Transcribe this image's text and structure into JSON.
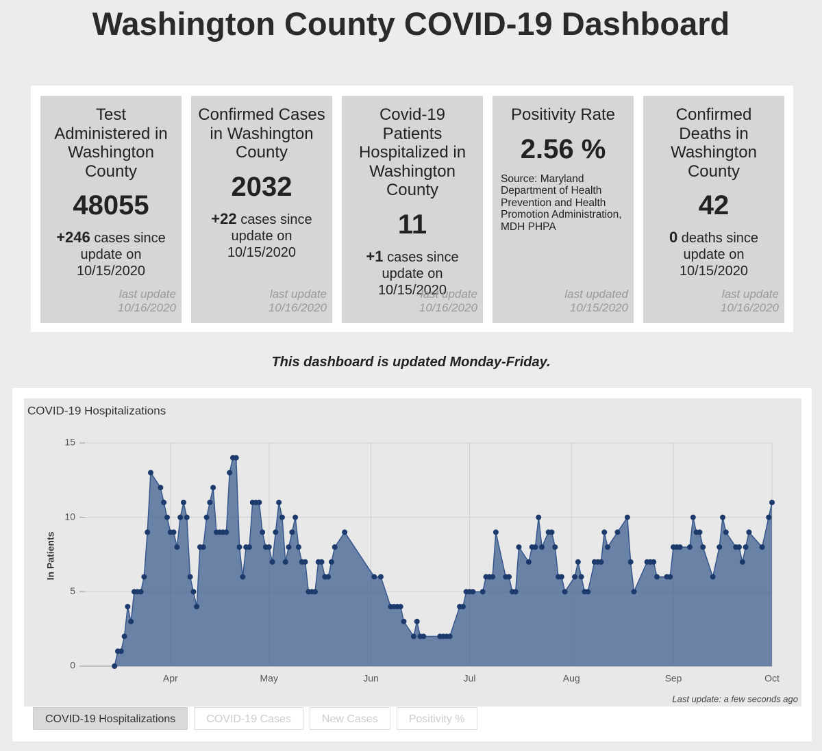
{
  "header": {
    "title": "Washington County COVID-19 Dashboard"
  },
  "cards": [
    {
      "title": "Test Administered in Washington County",
      "value": 48055,
      "change": "+246",
      "change_text": "cases since update on 10/15/2020",
      "footer": "last update 10/16/2020"
    },
    {
      "title": "Confirmed Cases in Washington County",
      "value": 2032,
      "change": "+22",
      "change_text": "cases since update on 10/15/2020",
      "footer": "last update 10/16/2020"
    },
    {
      "title": "Covid-19 Patients Hospitalized in Washington County",
      "value": 11,
      "change": "+1",
      "change_text": "cases since update on 10/15/2020",
      "footer": "last update 10/16/2020"
    },
    {
      "title": "Positivity Rate",
      "value": "2.56 %",
      "source": "Source: Maryland Department of Health Prevention and Health Promotion Administration, MDH PHPA",
      "footer": "last updated 10/15/2020"
    },
    {
      "title": "Confirmed Deaths in Washington County",
      "value": 42,
      "change": "0",
      "change_text": "deaths since update on 10/15/2020",
      "footer": "last update 10/16/2020"
    }
  ],
  "note": "This dashboard is updated Monday-Friday.",
  "chart_data": {
    "type": "area",
    "title": "COVID-19 Hospitalizations",
    "y_label": "In Patients",
    "color": "#36578c",
    "x": [
      0,
      1,
      2,
      3,
      4,
      5,
      6,
      7,
      8,
      9,
      10,
      11,
      14,
      15,
      16,
      17,
      18,
      19,
      20,
      21,
      22,
      23,
      24,
      25,
      26,
      27,
      28,
      29,
      30,
      31,
      32,
      33,
      34,
      35,
      36,
      37,
      38,
      39,
      40,
      41,
      42,
      43,
      44,
      45,
      46,
      47,
      48,
      49,
      50,
      51,
      52,
      53,
      54,
      55,
      56,
      57,
      58,
      59,
      60,
      61,
      62,
      63,
      64,
      65,
      66,
      67,
      70,
      79,
      81,
      84,
      85,
      86,
      87,
      88,
      91,
      92,
      93,
      94,
      99,
      100,
      101,
      102,
      105,
      106,
      107,
      108,
      109,
      112,
      113,
      114,
      115,
      116,
      119,
      120,
      121,
      122,
      123,
      126,
      127,
      128,
      129,
      130,
      132,
      133,
      134,
      135,
      136,
      137,
      140,
      141,
      142,
      143,
      144,
      146,
      147,
      148,
      149,
      150,
      153,
      156,
      157,
      158,
      162,
      163,
      164,
      165,
      168,
      169,
      170,
      171,
      172,
      175,
      176,
      177,
      178,
      179,
      182,
      184,
      185,
      186,
      189,
      190,
      191,
      192,
      193,
      197,
      199,
      200
    ],
    "series": [
      {
        "name": "COVID-19 Hospitalizations",
        "values": [
          0,
          1,
          1,
          2,
          4,
          3,
          5,
          5,
          5,
          6,
          9,
          13,
          12,
          11,
          10,
          9,
          9,
          8,
          10,
          11,
          10,
          6,
          5,
          4,
          8,
          8,
          10,
          11,
          12,
          9,
          9,
          9,
          9,
          13,
          14,
          14,
          8,
          6,
          8,
          8,
          11,
          11,
          11,
          9,
          8,
          8,
          7,
          9,
          11,
          10,
          7,
          8,
          9,
          10,
          8,
          7,
          7,
          5,
          5,
          5,
          7,
          7,
          6,
          6,
          7,
          8,
          9,
          6,
          6,
          4,
          4,
          4,
          4,
          3,
          2,
          3,
          2,
          2,
          2,
          2,
          2,
          2,
          4,
          4,
          5,
          5,
          5,
          5,
          6,
          6,
          6,
          9,
          6,
          6,
          5,
          5,
          8,
          7,
          8,
          8,
          10,
          8,
          9,
          9,
          8,
          6,
          6,
          5,
          6,
          7,
          6,
          5,
          5,
          7,
          7,
          7,
          9,
          8,
          9,
          10,
          7,
          5,
          7,
          7,
          7,
          6,
          6,
          6,
          8,
          8,
          8,
          8,
          10,
          9,
          9,
          8,
          6,
          8,
          10,
          9,
          8,
          8,
          7,
          8,
          9,
          8,
          10,
          11
        ]
      }
    ],
    "xlim": [
      -9,
      200
    ],
    "xticks": [
      {
        "value": 17,
        "label": "Apr"
      },
      {
        "value": 47,
        "label": "May"
      },
      {
        "value": 78,
        "label": "Jun"
      },
      {
        "value": 108,
        "label": "Jul"
      },
      {
        "value": 139,
        "label": "Aug"
      },
      {
        "value": 170,
        "label": "Sep"
      },
      {
        "value": 200,
        "label": "Oct"
      }
    ],
    "ylim": [
      0,
      15
    ],
    "yticks": [
      0,
      5,
      10,
      15
    ],
    "grid": true,
    "last_update": "Last update: a few seconds ago",
    "tabs": [
      "COVID-19 Hospitalizations",
      "COVID-19 Cases",
      "New Cases",
      "Positivity %"
    ]
  }
}
